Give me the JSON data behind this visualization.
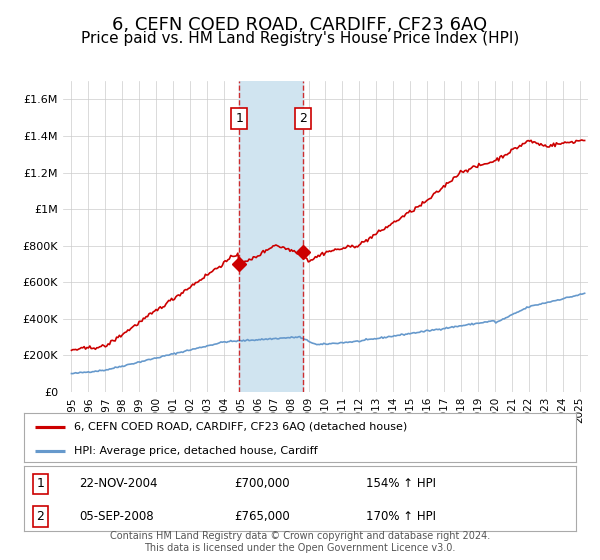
{
  "title": "6, CEFN COED ROAD, CARDIFF, CF23 6AQ",
  "subtitle": "Price paid vs. HM Land Registry's House Price Index (HPI)",
  "title_fontsize": 13,
  "subtitle_fontsize": 11,
  "background_color": "#ffffff",
  "plot_bg_color": "#ffffff",
  "grid_color": "#cccccc",
  "red_line_color": "#cc0000",
  "blue_line_color": "#6699cc",
  "sale1_date": 2004.9,
  "sale1_value": 700000,
  "sale1_label": "1",
  "sale2_date": 2008.67,
  "sale2_value": 765000,
  "sale2_label": "2",
  "shade_start": 2004.9,
  "shade_end": 2008.67,
  "shade_color": "#d0e4f0",
  "vline_color": "#cc0000",
  "vline_alpha": 0.8,
  "ylim_min": 0,
  "ylim_max": 1700000,
  "xlim_min": 1994.5,
  "xlim_max": 2025.5,
  "ytick_values": [
    0,
    200000,
    400000,
    600000,
    800000,
    1000000,
    1200000,
    1400000,
    1600000
  ],
  "ytick_labels": [
    "£0",
    "£200K",
    "£400K",
    "£600K",
    "£800K",
    "£1M",
    "£1.2M",
    "£1.4M",
    "£1.6M"
  ],
  "xtick_values": [
    1995,
    1996,
    1997,
    1998,
    1999,
    2000,
    2001,
    2002,
    2003,
    2004,
    2005,
    2006,
    2007,
    2008,
    2009,
    2010,
    2011,
    2012,
    2013,
    2014,
    2015,
    2016,
    2017,
    2018,
    2019,
    2020,
    2021,
    2022,
    2023,
    2024,
    2025
  ],
  "legend_entries": [
    {
      "label": "6, CEFN COED ROAD, CARDIFF, CF23 6AQ (detached house)",
      "color": "#cc0000",
      "lw": 1.5
    },
    {
      "label": "HPI: Average price, detached house, Cardiff",
      "color": "#6699cc",
      "lw": 1.5
    }
  ],
  "table_rows": [
    {
      "num": "1",
      "date": "22-NOV-2004",
      "price": "£700,000",
      "pct": "154% ↑ HPI"
    },
    {
      "num": "2",
      "date": "05-SEP-2008",
      "price": "£765,000",
      "pct": "170% ↑ HPI"
    }
  ],
  "footnote": "Contains HM Land Registry data © Crown copyright and database right 2024.\nThis data is licensed under the Open Government Licence v3.0.",
  "footnote_fontsize": 7
}
